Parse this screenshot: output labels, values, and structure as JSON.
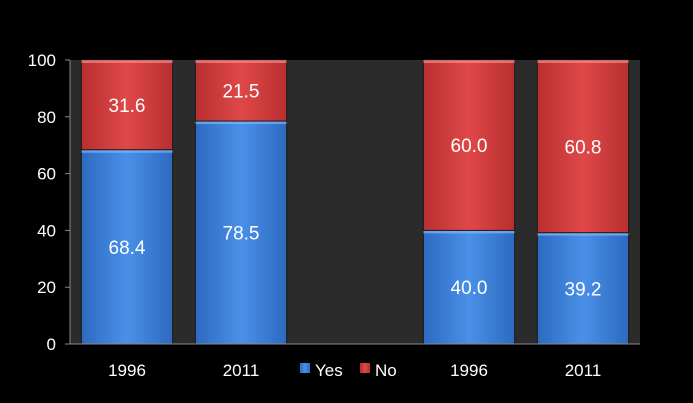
{
  "chart_data": {
    "type": "bar",
    "stacked": true,
    "categories": [
      "1996",
      "2011",
      "",
      "1996",
      "2011"
    ],
    "series": [
      {
        "name": "Yes",
        "color": "#3a7fd6",
        "values": [
          68.4,
          78.5,
          null,
          40.0,
          39.2
        ]
      },
      {
        "name": "No",
        "color": "#d63a3a",
        "values": [
          31.6,
          21.5,
          null,
          60.0,
          60.8
        ]
      }
    ],
    "data_labels": {
      "Yes": [
        "68.4",
        "78.5",
        "",
        "40.0",
        "39.2"
      ],
      "No": [
        "31.6",
        "21.5",
        "",
        "60.0",
        "60.8"
      ]
    },
    "title": "",
    "xlabel": "",
    "ylabel": "",
    "ylim": [
      0,
      100
    ],
    "yticks": [
      "0",
      "20",
      "40",
      "60",
      "80",
      "100"
    ],
    "grid": false,
    "legend": {
      "placement": "bottom-center",
      "entries": [
        "Yes",
        "No"
      ]
    },
    "plot_background": "#2b2b2b",
    "background": "#000000"
  }
}
